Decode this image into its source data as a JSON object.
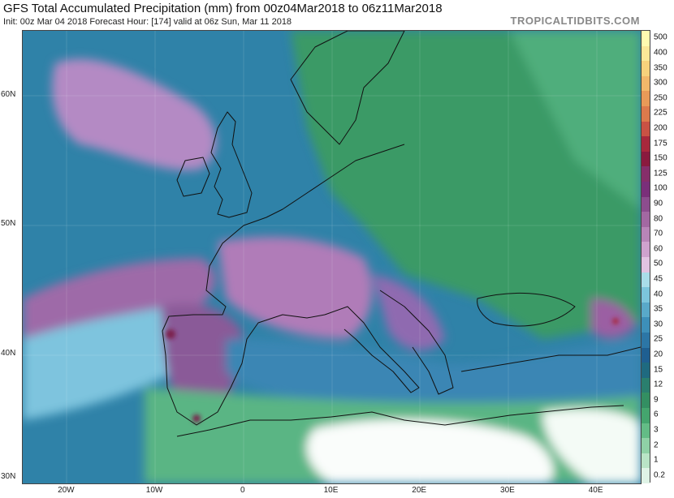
{
  "header": {
    "title": "GFS Total Accumulated Precipitation (mm) from 00z04Mar2018 to 06z11Mar2018",
    "subtitle": "Init: 00z Mar 04 2018   Forecast Hour: [174]   valid at 06z Sun, Mar 11 2018",
    "credit": "TROPICALTIDBITS.COM"
  },
  "map": {
    "region": "Europe and North Africa",
    "lat_range": [
      30,
      65
    ],
    "lon_range": [
      -25,
      45
    ],
    "lat_labels": [
      "60N",
      "50N",
      "40N",
      "30N"
    ],
    "lon_labels": [
      "20W",
      "10W",
      "0",
      "10E",
      "20E",
      "30E",
      "40E"
    ]
  },
  "colorbar": {
    "units": "mm",
    "levels": [
      "500",
      "400",
      "350",
      "300",
      "250",
      "225",
      "200",
      "175",
      "150",
      "125",
      "100",
      "90",
      "80",
      "70",
      "60",
      "50",
      "45",
      "40",
      "35",
      "30",
      "25",
      "20",
      "15",
      "12",
      "9",
      "6",
      "3",
      "2",
      "1",
      "0.2"
    ],
    "colors": [
      "#fffbb0",
      "#fbe898",
      "#f7d27c",
      "#f2b86a",
      "#e89a58",
      "#dc7a4c",
      "#c95244",
      "#a8283c",
      "#8a1a3e",
      "#862e6a",
      "#7a2f7a",
      "#8c4d8e",
      "#a268a2",
      "#b885b8",
      "#cea2ce",
      "#e2c3e2",
      "#a9dde9",
      "#7cc5dc",
      "#59a9c9",
      "#3d8fb9",
      "#2c76a6",
      "#1f5f91",
      "#1f6a80",
      "#2a7f6e",
      "#338f62",
      "#44a56e",
      "#63bc86",
      "#8fd1a6",
      "#b9e4c6",
      "#dff3e6"
    ]
  }
}
